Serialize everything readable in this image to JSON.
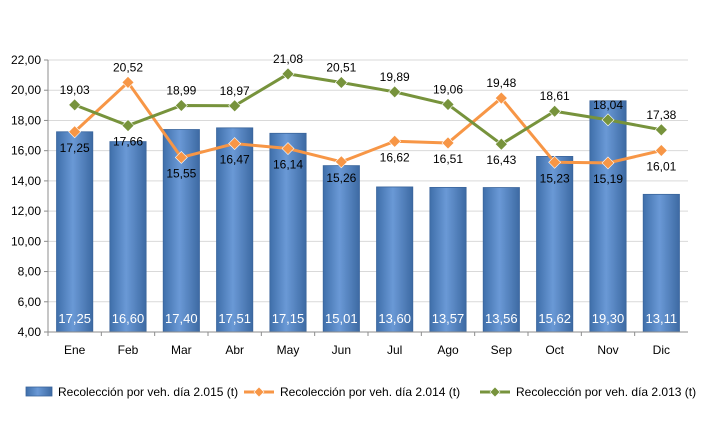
{
  "chart_data": {
    "type": "bar",
    "categories": [
      "Ene",
      "Feb",
      "Mar",
      "Abr",
      "May",
      "Jun",
      "Jul",
      "Ago",
      "Sep",
      "Oct",
      "Nov",
      "Dic"
    ],
    "ylim": [
      4,
      22
    ],
    "yticks": [
      "4,00",
      "6,00",
      "8,00",
      "10,00",
      "12,00",
      "14,00",
      "16,00",
      "18,00",
      "20,00",
      "22,00"
    ],
    "ytick_values": [
      4,
      6,
      8,
      10,
      12,
      14,
      16,
      18,
      20,
      22
    ],
    "grid": true,
    "legend_position": "bottom",
    "series": [
      {
        "name": "Recolección por veh. día 2.015 (t)",
        "type": "bar",
        "color": "#4F81BD",
        "values": [
          17.25,
          16.6,
          17.4,
          17.51,
          17.15,
          15.01,
          13.6,
          13.57,
          13.56,
          15.62,
          19.3,
          13.11
        ],
        "labels": [
          "17,25",
          "16,60",
          "17,40",
          "17,51",
          "17,15",
          "15,01",
          "13,60",
          "13,57",
          "13,56",
          "15,62",
          "19,30",
          "13,11"
        ]
      },
      {
        "name": "Recolección por veh. día 2.014 (t)",
        "type": "line",
        "color": "#F79646",
        "values": [
          17.25,
          20.52,
          15.55,
          16.47,
          16.14,
          15.26,
          16.62,
          16.51,
          19.48,
          15.23,
          15.19,
          16.01
        ],
        "labels": [
          "17,25",
          "20,52",
          "15,55",
          "16,47",
          "16,14",
          "15,26",
          "16,62",
          "16,51",
          "19,48",
          "15,23",
          "15,19",
          "16,01"
        ]
      },
      {
        "name": "Recolección por veh. día 2.013 (t)",
        "type": "line",
        "color": "#77933C",
        "values": [
          19.03,
          17.66,
          18.99,
          18.97,
          21.08,
          20.51,
          19.89,
          19.06,
          16.43,
          18.61,
          18.04,
          17.38
        ],
        "labels": [
          "19,03",
          "17,66",
          "18,99",
          "18,97",
          "21,08",
          "20,51",
          "19,89",
          "19,06",
          "16,43",
          "18,61",
          "18,04",
          "17,38"
        ]
      }
    ]
  }
}
